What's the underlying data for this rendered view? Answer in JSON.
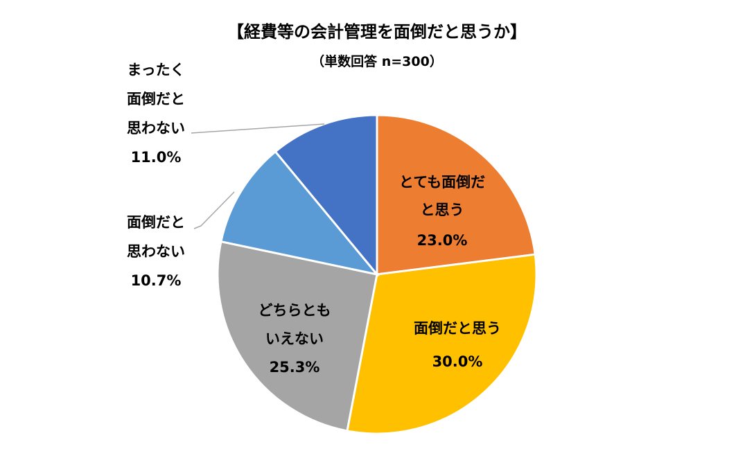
{
  "chart_data": {
    "type": "pie",
    "title": "【経費等の会計管理を面倒だと思うか】",
    "subtitle": "（単数回答 n=300）",
    "start": "top",
    "direction": "clockwise",
    "slices": [
      {
        "label_lines": [
          "とても面倒だ",
          "と思う"
        ],
        "value": 23.0,
        "value_label": "23.0%",
        "color": "#ED7D31"
      },
      {
        "label_lines": [
          "面倒だと思う"
        ],
        "value": 30.0,
        "value_label": "30.0%",
        "color": "#FFC000"
      },
      {
        "label_lines": [
          "どちらとも",
          "いえない"
        ],
        "value": 25.3,
        "value_label": "25.3%",
        "color": "#A5A5A5"
      },
      {
        "label_lines": [
          "面倒だと",
          "思わない"
        ],
        "value": 10.7,
        "value_label": "10.7%",
        "color": "#5B9BD5"
      },
      {
        "label_lines": [
          "まったく",
          "面倒だと",
          "思わない"
        ],
        "value": 11.0,
        "value_label": "11.0%",
        "color": "#4472C4"
      }
    ]
  }
}
